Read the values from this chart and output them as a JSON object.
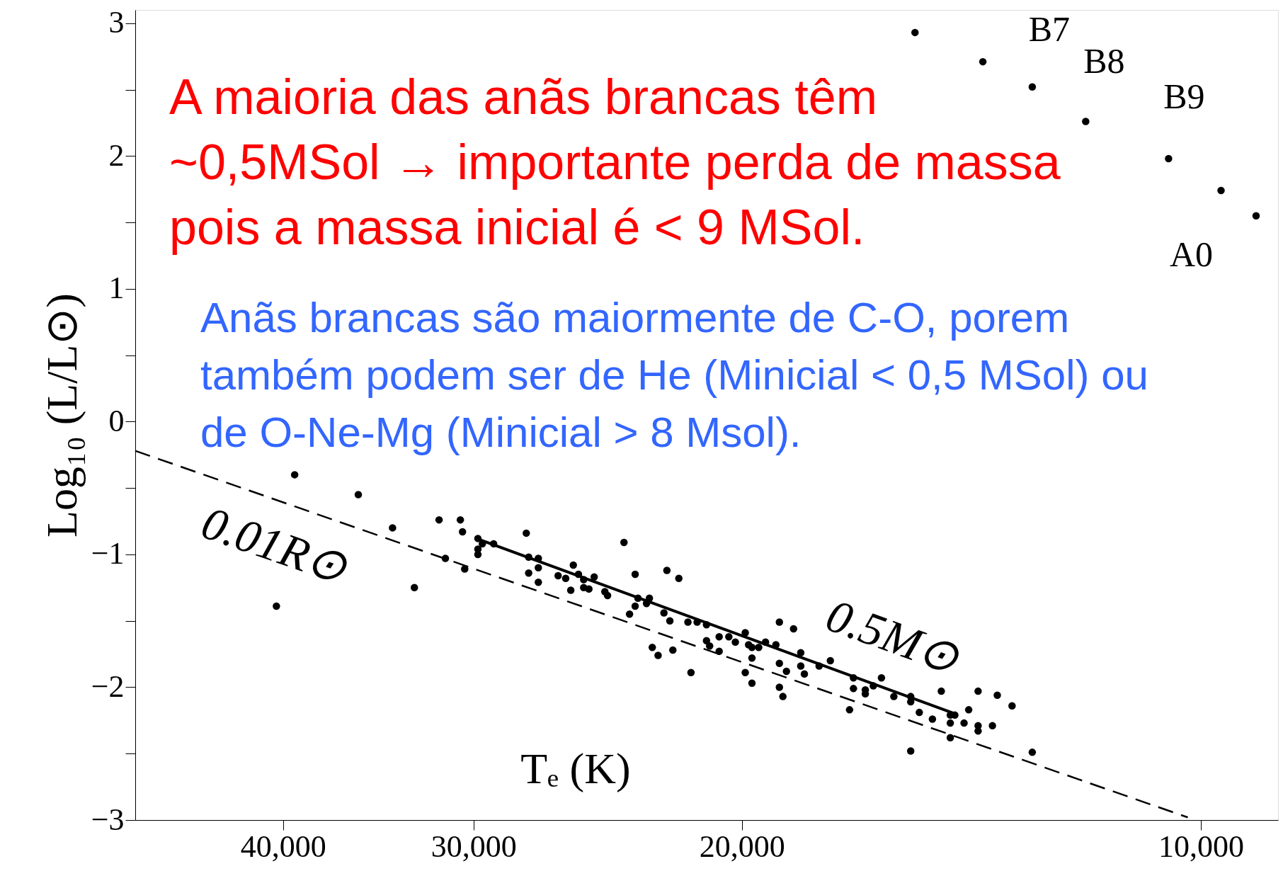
{
  "chart_data": {
    "type": "scatter",
    "xlabel": "Tₑ (K)",
    "ylabel": "Log₁₀ (L/L⊙)",
    "log": "x",
    "xlim": [
      50000,
      8900
    ],
    "ylim": [
      -3,
      3.1
    ],
    "xticks": [
      {
        "value": 40000,
        "label": "40,000"
      },
      {
        "value": 30000,
        "label": "30,000"
      },
      {
        "value": 20000,
        "label": "20,000"
      },
      {
        "value": 10000,
        "label": "10,000"
      }
    ],
    "yticks": [
      -3,
      {
        "value": -2.5,
        "label": null
      },
      -2,
      {
        "value": -1.5,
        "label": null
      },
      -1,
      {
        "value": -0.5,
        "label": null
      },
      0,
      {
        "value": 0.5,
        "label": null
      },
      1,
      {
        "value": 1.5,
        "label": null
      },
      2,
      {
        "value": 2.5,
        "label": null
      },
      3
    ],
    "grid": false,
    "series": [
      {
        "marker": "circle",
        "color": "#000000",
        "x": [
          15400,
          13900,
          12900,
          11900,
          10500,
          9700,
          9200,
          39300,
          35700,
          33900,
          31600,
          30600,
          30500,
          29800,
          29600,
          29800,
          29800,
          29100,
          31300,
          30400,
          32800,
          40400,
          27700,
          27600,
          27200,
          27200,
          27600,
          27200,
          23900,
          25800,
          26400,
          26100,
          25600,
          25400,
          25000,
          25900,
          25400,
          25200,
          24600,
          24500,
          23500,
          23400,
          23500,
          23700,
          22900,
          22400,
          22000,
          23000,
          23100,
          22500,
          22300,
          21700,
          21400,
          21100,
          20700,
          21100,
          21000,
          20700,
          20400,
          20200,
          19900,
          19800,
          19700,
          19500,
          19300,
          19000,
          22700,
          22200,
          21600,
          19700,
          19900,
          19700,
          18900,
          18500,
          18900,
          18700,
          18300,
          18300,
          18200,
          18900,
          18800,
          17800,
          17500,
          16900,
          16900,
          16600,
          16600,
          17000,
          16200,
          16400,
          15900,
          15500,
          15500,
          15300,
          15000,
          15500,
          14600,
          14500,
          14600,
          14600,
          14300,
          14200,
          14000,
          13600,
          13300,
          14000,
          14000,
          13700,
          12900,
          14800
        ],
        "values": [
          2.93,
          2.71,
          2.52,
          2.26,
          1.98,
          1.74,
          1.55,
          -0.4,
          -0.55,
          -0.8,
          -0.74,
          -0.74,
          -0.83,
          -0.88,
          -0.92,
          -0.96,
          -1.0,
          -0.92,
          -1.03,
          -1.11,
          -1.25,
          -1.39,
          -0.84,
          -1.02,
          -1.03,
          -1.1,
          -1.14,
          -1.21,
          -0.91,
          -1.08,
          -1.16,
          -1.18,
          -1.15,
          -1.19,
          -1.17,
          -1.27,
          -1.25,
          -1.26,
          -1.28,
          -1.31,
          -1.15,
          -1.33,
          -1.39,
          -1.45,
          -1.7,
          -1.12,
          -1.18,
          -1.33,
          -1.37,
          -1.44,
          -1.5,
          -1.51,
          -1.51,
          -1.53,
          -1.62,
          -1.65,
          -1.69,
          -1.73,
          -1.62,
          -1.66,
          -1.59,
          -1.68,
          -1.7,
          -1.7,
          -1.66,
          -1.68,
          -1.76,
          -1.72,
          -1.89,
          -1.78,
          -1.89,
          -1.97,
          -1.51,
          -1.56,
          -1.82,
          -1.88,
          -1.74,
          -1.84,
          -1.9,
          -2.0,
          -2.07,
          -1.84,
          -1.8,
          -1.93,
          -2.01,
          -2.02,
          -2.05,
          -2.17,
          -1.93,
          -1.99,
          -2.07,
          -2.07,
          -2.11,
          -2.19,
          -2.24,
          -2.48,
          -2.21,
          -2.21,
          -2.27,
          -2.38,
          -2.27,
          -2.17,
          -2.03,
          -2.06,
          -2.14,
          -2.29,
          -2.33,
          -2.29,
          -2.49,
          -2.03
        ]
      },
      {
        "type": "line",
        "color": "#000000",
        "line_style": "dashed",
        "x": [
          50000,
          10200
        ],
        "values": [
          -0.22,
          -2.98
        ]
      },
      {
        "type": "line",
        "color": "#000000",
        "line_style": "solid",
        "x": [
          29700,
          14500
        ],
        "values": [
          -0.89,
          -2.2
        ]
      }
    ],
    "annotations": [
      "A maioria das anãs brancas têm\n~0,5MSol → importante perda de massa\npois a massa inicial é < 9 MSol.",
      "Anãs brancas são maiormente de C-O, porem\ntambém podem ser de He (Minicial < 0,5 MSol) ou\nde O-Ne-Mg (Minicial > 8 Msol).",
      "0.01R⊙",
      "0.5M⊙",
      {
        "text": "B7",
        "x": 12900,
        "y": 2.52
      },
      {
        "text": "B8",
        "x": 11900,
        "y": 2.26
      },
      {
        "text": "B9",
        "x": 10500,
        "y": 1.98
      },
      {
        "text": "A0",
        "x": 9700,
        "y": 1.74
      }
    ]
  }
}
